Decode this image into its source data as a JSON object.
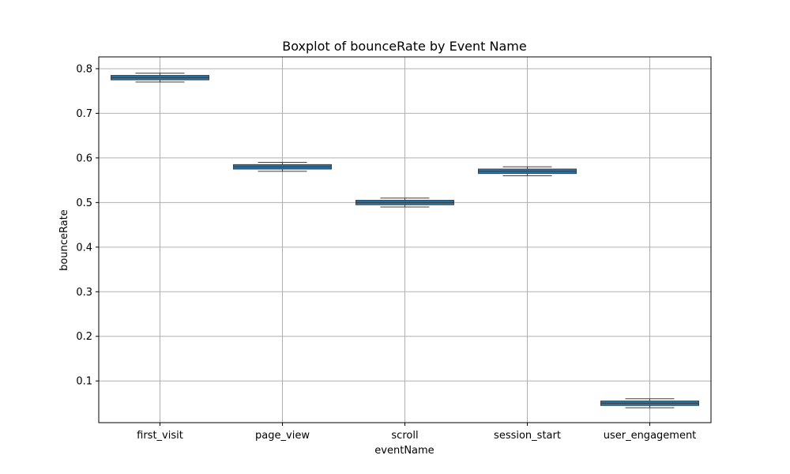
{
  "chart_data": {
    "type": "box",
    "title": "Boxplot of bounceRate by Event Name",
    "xlabel": "eventName",
    "ylabel": "bounceRate",
    "categories": [
      "first_visit",
      "page_view",
      "scroll",
      "session_start",
      "user_engagement"
    ],
    "boxes": [
      {
        "category": "first_visit",
        "whisker_low": 0.77,
        "q1": 0.775,
        "median": 0.78,
        "q3": 0.785,
        "whisker_high": 0.79
      },
      {
        "category": "page_view",
        "whisker_low": 0.57,
        "q1": 0.575,
        "median": 0.58,
        "q3": 0.585,
        "whisker_high": 0.59
      },
      {
        "category": "scroll",
        "whisker_low": 0.49,
        "q1": 0.495,
        "median": 0.5,
        "q3": 0.505,
        "whisker_high": 0.51
      },
      {
        "category": "session_start",
        "whisker_low": 0.56,
        "q1": 0.565,
        "median": 0.57,
        "q3": 0.575,
        "whisker_high": 0.58
      },
      {
        "category": "user_engagement",
        "whisker_low": 0.04,
        "q1": 0.045,
        "median": 0.05,
        "q3": 0.055,
        "whisker_high": 0.06
      }
    ],
    "yticks": [
      0.1,
      0.2,
      0.3,
      0.4,
      0.5,
      0.6,
      0.7,
      0.8
    ],
    "ytick_labels": [
      "0.1",
      "0.2",
      "0.3",
      "0.4",
      "0.5",
      "0.6",
      "0.7",
      "0.8"
    ],
    "ylim": [
      0.0065,
      0.8265
    ],
    "grid": true,
    "colors": {
      "box_fill": "#1f77b4",
      "box_edge": "#3f3f3f",
      "grid": "#b0b0b0",
      "axis": "#000000"
    }
  }
}
